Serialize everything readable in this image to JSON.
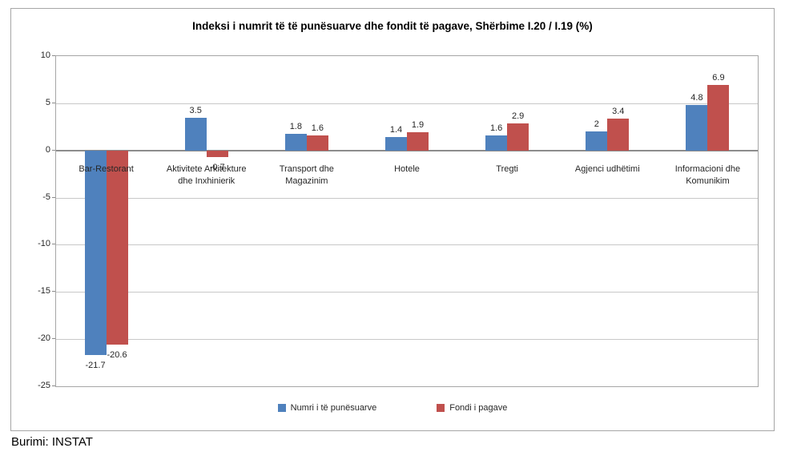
{
  "chart_data": {
    "type": "bar",
    "title": "Indeksi i numrit të të punësuarve dhe fondit të pagave, Shërbime I.20 / I.19 (%)",
    "categories": [
      "Bar-Restorant",
      "Aktivitete Arkitekture dhe Inxhinierik",
      "Transport dhe Magazinim",
      "Hotele",
      "Tregti",
      "Agjenci udhëtimi",
      "Informacioni dhe Komunikim"
    ],
    "series": [
      {
        "name": "Numri i të punësuarve",
        "color": "#4F81BD",
        "values": [
          -21.7,
          3.5,
          1.8,
          1.4,
          1.6,
          2,
          4.8
        ],
        "labels": [
          "-21.7",
          "3.5",
          "1.8",
          "1.4",
          "1.6",
          "2",
          "4.8"
        ]
      },
      {
        "name": "Fondi i pagave",
        "color": "#C0504D",
        "values": [
          -20.6,
          -0.7,
          1.6,
          1.9,
          2.9,
          3.4,
          6.9
        ],
        "labels": [
          "-20.6",
          "-0.7",
          "1.6",
          "1.9",
          "2.9",
          "3.4",
          "6.9"
        ]
      }
    ],
    "ylim": [
      -25,
      10
    ],
    "yticks": [
      10,
      5,
      0,
      -5,
      -10,
      -15,
      -20,
      -25
    ],
    "grid": true,
    "legend_position": "bottom"
  },
  "source": {
    "label": "Burimi: INSTAT"
  },
  "colors": {
    "gridline": "#C8C8C8",
    "zero_axis": "#8C8C8C",
    "border": "#A6A6A6",
    "text": "#262626"
  }
}
